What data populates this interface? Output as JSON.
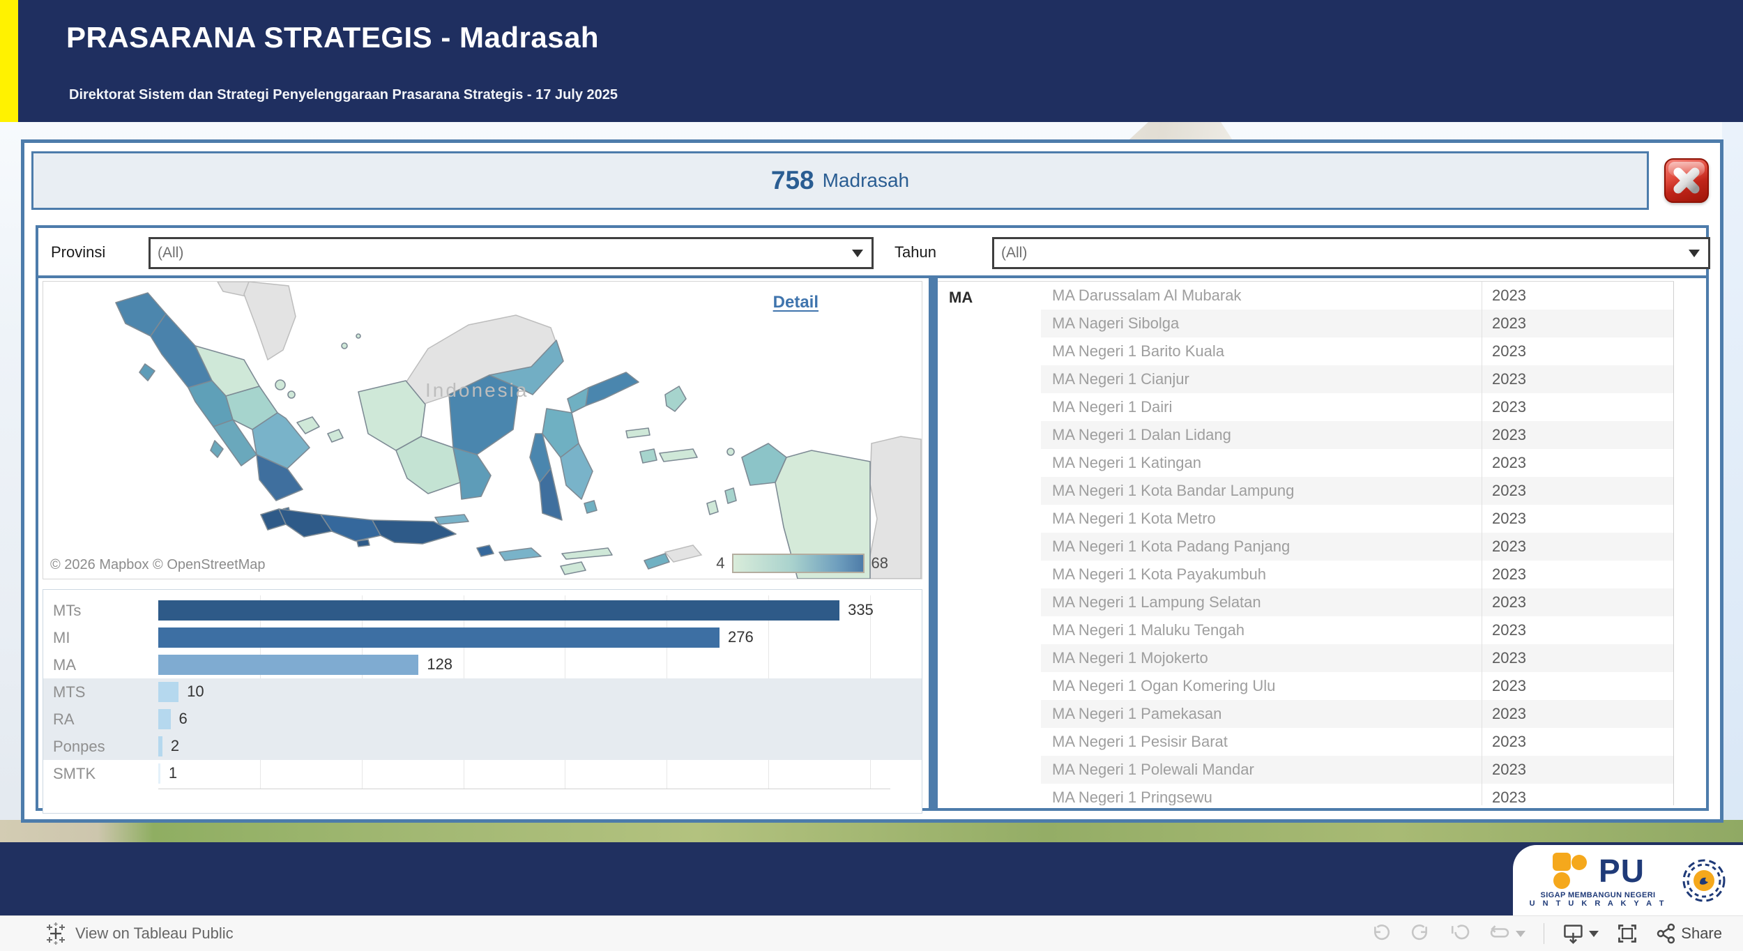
{
  "header": {
    "title": "PRASARANA STRATEGIS - Madrasah",
    "subtitle": "Direktorat Sistem dan Strategi Penyelenggaraan Prasarana Strategis - 17 July 2025"
  },
  "summary": {
    "count": "758",
    "unit": "Madrasah"
  },
  "filters": {
    "provinsi": {
      "label": "Provinsi",
      "value": "(All)"
    },
    "tahun": {
      "label": "Tahun",
      "value": "(All)"
    }
  },
  "map": {
    "detail_link": "Detail",
    "country_label": "Indonesia",
    "attribution": "© 2026 Mapbox  © OpenStreetMap",
    "legend": {
      "min": "4",
      "max": "68",
      "color_min": "#d9ecda",
      "color_max": "#4e7ca8"
    }
  },
  "chart_data": {
    "type": "bar",
    "orientation": "horizontal",
    "title": "",
    "xlabel": "",
    "ylabel": "",
    "categories": [
      "MTs",
      "MI",
      "MA",
      "MTS",
      "RA",
      "Ponpes",
      "SMTK"
    ],
    "values": [
      335,
      276,
      128,
      10,
      6,
      2,
      1
    ],
    "bar_colors": [
      "#2e5a88",
      "#3d6fa3",
      "#7fabd1",
      "#b5d8ee",
      "#b5d8ee",
      "#b5d8ee",
      "#e4f1fa"
    ],
    "highlight_band_categories": [
      "MTS",
      "RA",
      "Ponpes"
    ],
    "xlim": [
      0,
      360
    ],
    "grid_interval": 50,
    "grid": true,
    "legend_position": "none"
  },
  "table": {
    "row_header": "MA",
    "rows": [
      {
        "name": "MA Darussalam Al Mubarak",
        "year": "2023"
      },
      {
        "name": "MA Nageri Sibolga",
        "year": "2023"
      },
      {
        "name": "MA Negeri 1 Barito Kuala",
        "year": "2023"
      },
      {
        "name": "MA Negeri 1 Cianjur",
        "year": "2023"
      },
      {
        "name": "MA Negeri 1 Dairi",
        "year": "2023"
      },
      {
        "name": "MA Negeri 1 Dalan Lidang",
        "year": "2023"
      },
      {
        "name": "MA Negeri 1 Katingan",
        "year": "2023"
      },
      {
        "name": "MA Negeri 1 Kota Bandar Lampung",
        "year": "2023"
      },
      {
        "name": "MA Negeri 1 Kota Metro",
        "year": "2023"
      },
      {
        "name": "MA Negeri 1 Kota Padang Panjang",
        "year": "2023"
      },
      {
        "name": "MA Negeri 1 Kota Payakumbuh",
        "year": "2023"
      },
      {
        "name": "MA Negeri 1 Lampung Selatan",
        "year": "2023"
      },
      {
        "name": "MA Negeri 1 Maluku Tengah",
        "year": "2023"
      },
      {
        "name": "MA Negeri 1 Mojokerto",
        "year": "2023"
      },
      {
        "name": "MA Negeri 1 Ogan Komering Ulu",
        "year": "2023"
      },
      {
        "name": "MA Negeri 1 Pamekasan",
        "year": "2023"
      },
      {
        "name": "MA Negeri 1 Pesisir Barat",
        "year": "2023"
      },
      {
        "name": "MA Negeri 1 Polewali Mandar",
        "year": "2023"
      },
      {
        "name": "MA Negeri 1 Pringsewu",
        "year": "2023"
      }
    ]
  },
  "toolbar": {
    "view_on": "View on Tableau Public",
    "share": "Share"
  },
  "branding": {
    "logo_text": "PU",
    "tagline_1": "SIGAP MEMBANGUN NEGERI",
    "tagline_2": "U N T U K   R A K Y A T"
  },
  "colors": {
    "header_bg": "#1f2f60",
    "accent_yellow": "#fff200",
    "frame_blue": "#4d7cab",
    "count_text": "#2a5d92",
    "band_gray": "#e6ebf0",
    "close_red": "#c0251a"
  }
}
